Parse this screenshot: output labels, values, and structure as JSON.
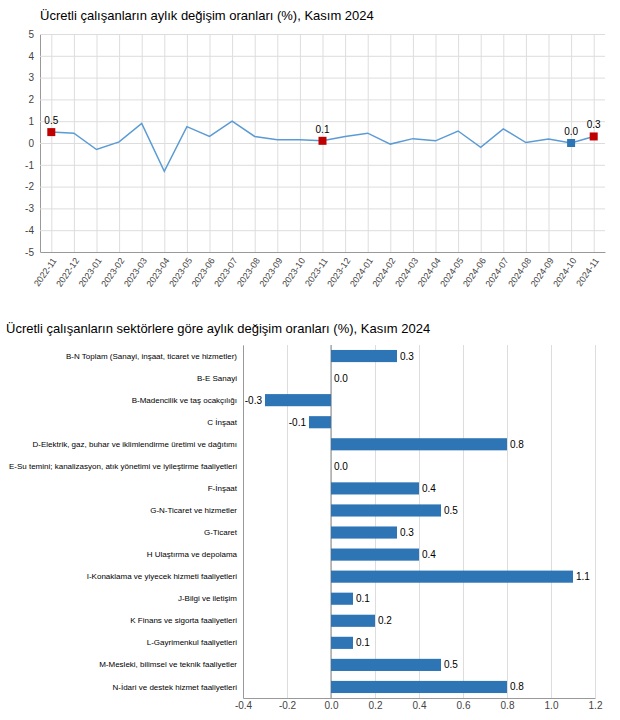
{
  "chart_data": [
    {
      "type": "line",
      "title": "Ücretli çalışanların aylık değişim oranları (%), Kasım 2024",
      "categories": [
        "2022-11",
        "2022-12",
        "2023-01",
        "2023-02",
        "2023-03",
        "2023-04",
        "2023-05",
        "2023-06",
        "2023-07",
        "2023-08",
        "2023-09",
        "2023-10",
        "2023-11",
        "2023-12",
        "2024-01",
        "2024-02",
        "2024-03",
        "2024-04",
        "2024-05",
        "2024-06",
        "2024-07",
        "2024-08",
        "2024-09",
        "2024-10",
        "2024-11"
      ],
      "values": [
        0.5,
        0.45,
        -0.3,
        0.05,
        0.9,
        -1.3,
        0.75,
        0.3,
        1.0,
        0.3,
        0.15,
        0.15,
        0.1,
        0.3,
        0.45,
        -0.05,
        0.2,
        0.1,
        0.55,
        -0.2,
        0.65,
        0.02,
        0.18,
        0.0,
        0.3
      ],
      "color": "#5b9bd5",
      "ylim": [
        -5,
        5
      ],
      "yticks": [
        -5,
        -4,
        -3,
        -2,
        -1,
        0,
        1,
        2,
        3,
        4,
        5
      ],
      "grid": true,
      "annotations": [
        {
          "x": "2022-11",
          "y": 0.5,
          "text": "0.5",
          "color": "#c00000",
          "marker": "square"
        },
        {
          "x": "2023-11",
          "y": 0.1,
          "text": "0.1",
          "color": "#c00000",
          "marker": "square"
        },
        {
          "x": "2024-10",
          "y": 0.0,
          "text": "0.0",
          "color": "#2e75b6",
          "marker": "square"
        },
        {
          "x": "2024-11",
          "y": 0.3,
          "text": "0.3",
          "color": "#c00000",
          "marker": "square"
        }
      ]
    },
    {
      "type": "bar",
      "orientation": "horizontal",
      "title": "Ücretli çalışanların sektörlere göre aylık değişim oranları (%), Kasım 2024",
      "categories": [
        "B-N Toplam (Sanayi, inşaat, ticaret ve hizmetler)",
        "B-E Sanayi",
        "B-Madencilik ve taş ocakçılığı",
        "C İnşaat",
        "D-Elektrik, gaz, buhar ve iklimlendirme üretimi ve dağıtımı",
        "E-Su temini; kanalizasyon, atık yönetimi ve iyileştirme faaliyetleri",
        "F-İnşaat",
        "G-N-Ticaret ve hizmetler",
        "G-Ticaret",
        "H Ulaştırma ve depolama",
        "I-Konaklama ve yiyecek hizmeti faaliyetleri",
        "J-Bilgi ve iletişim",
        "K Finans ve sigorta faaliyetleri",
        "L-Gayrimenkul faaliyetleri",
        "M-Mesleki, bilimsel ve teknik faaliyetler",
        "N-İdari ve destek hizmet faaliyetleri"
      ],
      "values": [
        0.3,
        0.0,
        -0.3,
        -0.1,
        0.8,
        0.0,
        0.4,
        0.5,
        0.3,
        0.4,
        1.1,
        0.1,
        0.2,
        0.1,
        0.5,
        0.8
      ],
      "value_labels": [
        "0.3",
        "0.0",
        "-0.3",
        "-0.1",
        "0.8",
        "0.0",
        "0.4",
        "0.5",
        "0.3",
        "0.4",
        "1.1",
        "0.1",
        "0.2",
        "0.1",
        "0.5",
        "0.8"
      ],
      "data_labels": true,
      "color": "#2e75b6",
      "xlim": [
        -0.4,
        1.2
      ],
      "xticks": [
        -0.4,
        -0.2,
        {
          "value": 0,
          "label": "0.0"
        },
        0.2,
        0.4,
        0.6,
        0.8,
        {
          "value": 1,
          "label": "1.0"
        },
        1.2
      ],
      "grid": true
    }
  ]
}
